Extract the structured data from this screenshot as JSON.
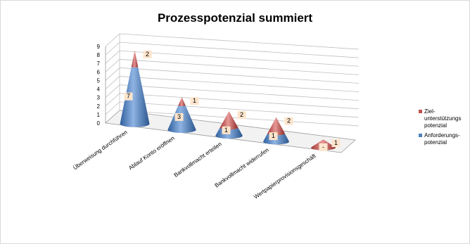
{
  "chart_data": {
    "type": "bar",
    "title": "Prozesspotenzial summiert",
    "categories": [
      "Überweisung durchführen",
      "Ablauf Konto eröffnen",
      "Bankvollmacht erteilen",
      "Bankvollmacht widerrufen",
      "Wertpapierprovisionsgeschäft"
    ],
    "series": [
      {
        "name": "Anforderungs-\npotenzial",
        "color": "#4f81bd",
        "values": [
          7,
          3,
          1,
          1,
          0
        ]
      },
      {
        "name": "Ziel-\nunterstützungs\npotenzial",
        "color": "#c0504d",
        "values": [
          2,
          1,
          2,
          2,
          1
        ]
      }
    ],
    "ylim": [
      0,
      9
    ],
    "yticks": [
      0,
      1,
      2,
      3,
      4,
      5,
      6,
      7,
      8,
      9
    ],
    "grid": true,
    "legend_position": "right",
    "stacked": true
  }
}
